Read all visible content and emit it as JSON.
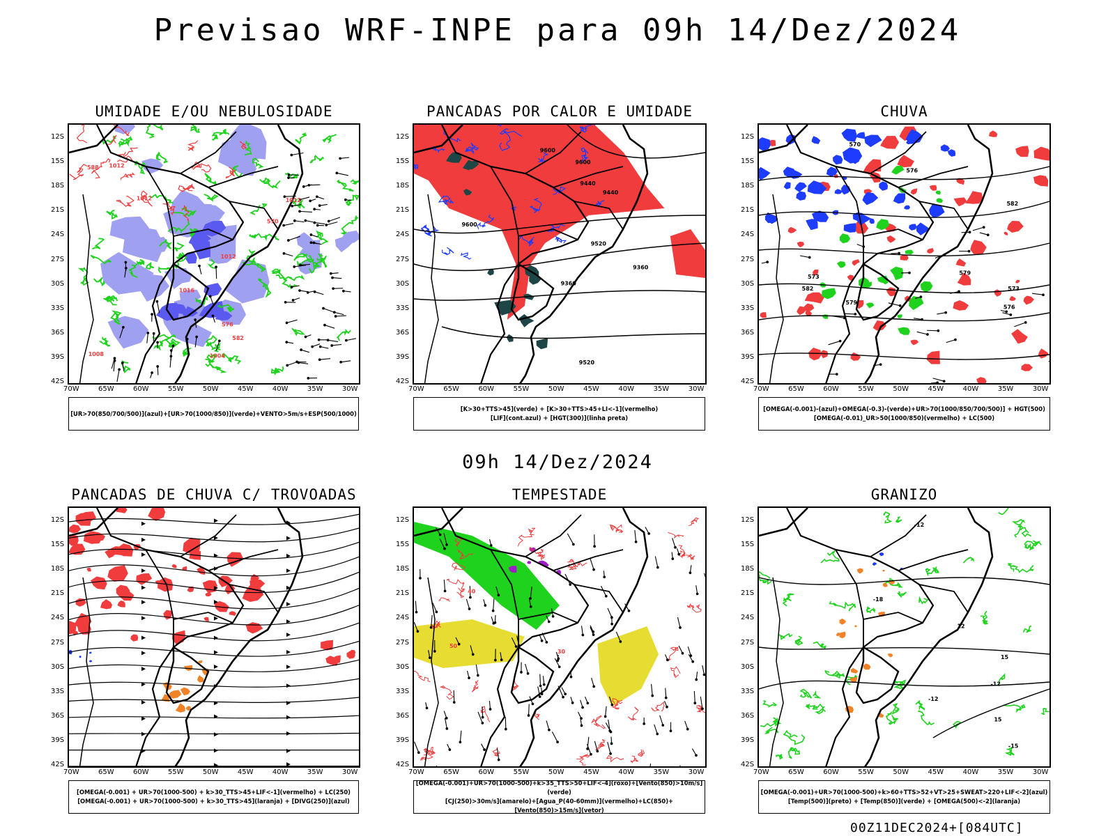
{
  "header": {
    "title": "Previsao WRF-INPE  para 09h 14/Dez/2024",
    "mid_title": "09h 14/Dez/2024",
    "run_label": "00Z11DEC2024+[084UTC]"
  },
  "axes": {
    "lat_labels": [
      "12S",
      "15S",
      "18S",
      "21S",
      "24S",
      "27S",
      "30S",
      "33S",
      "36S",
      "39S",
      "42S"
    ],
    "lon_labels": [
      "70W",
      "65W",
      "60W",
      "55W",
      "50W",
      "45W",
      "40W",
      "35W",
      "30W"
    ]
  },
  "colors": {
    "red": "#f03c3c",
    "green": "#1ed21e",
    "blue": "#1e3cff",
    "lavender": "#a0a0f0",
    "darkgreen": "#1e4646",
    "orange": "#f08228",
    "yellow": "#e6dc32",
    "purple": "#a01ec8",
    "black": "#000000"
  },
  "panels": [
    {
      "title": "UMIDADE E/OU NEBULOSIDADE",
      "legend": [
        "[UR>70(850/700/500)](azul)+[UR>70(1000/850)](verde)+VENTO>5m/s+ESP(500/1000)"
      ],
      "contour_labels": [
        "1012",
        "1012",
        "1012",
        "1008",
        "1004",
        "1012",
        "1016",
        "570",
        "576",
        "582",
        "588"
      ]
    },
    {
      "title": "PANCADAS POR CALOR E UMIDADE",
      "legend": [
        "[K>30+TTS>45](verde)  +  [K>30+TTS>45+LI<-1](vermelho)",
        "[LIF](cont.azul)  +  [HGT(300)](linha preta)"
      ],
      "contour_labels": [
        "9600",
        "9600",
        "9520",
        "9520",
        "9440",
        "9360",
        "9440",
        "9360",
        "9600"
      ]
    },
    {
      "title": "CHUVA",
      "legend": [
        "[OMEGA(-0.001)-(azul)+OMEGA(-0.3)-(verde)+UR>70(1000/850/700/500)]  +  HGT(500)",
        "[OMEGA(-0.01)_UR>50(1000/850)(vermelho)  +  LC(500)"
      ],
      "contour_labels": [
        "582",
        "579",
        "576",
        "573",
        "570",
        "573",
        "576",
        "579",
        "582"
      ]
    },
    {
      "title": "PANCADAS DE CHUVA C/ TROVOADAS",
      "legend": [
        "[OMEGA(-0.001)  +  UR>70(1000-500)  +  k>30_TTS>45+LIF<-1](vermelho)  +  LC(250)",
        "[OMEGA(-0.001)  +  UR>70(1000-500)  +  k>30_TTS>45](laranja)  +  [DIVG(250)](azul)"
      ],
      "contour_labels": []
    },
    {
      "title": "TEMPESTADE",
      "legend": [
        "[OMEGA(-0.001)+UR>70(1000-500)+k>35_TTS>50+LIF<-4](roxo)+[Vento(850)>10m/s](verde)",
        "[CJ(250)>30m/s](amarelo)+[Agua_P(40-60mm)](vermelho)+LC(850)+[Vento(850)>15m/s](vetor)"
      ],
      "contour_labels": [
        "30",
        "40",
        "50"
      ]
    },
    {
      "title": "GRANIZO",
      "legend": [
        "[OMEGA(-0.001)+UR>70(1000-500)+k>60+TTS>52+VT>25+SWEAT>220+LIF<-2](azul)",
        "[Temp(500)](preto)  +  [Temp(850)](verde)  +  [OMEGA(500)<-2](laranja)"
      ],
      "contour_labels": [
        "-12",
        "-15",
        "-12",
        "-18",
        "-12",
        "15",
        "12",
        "15"
      ]
    }
  ]
}
